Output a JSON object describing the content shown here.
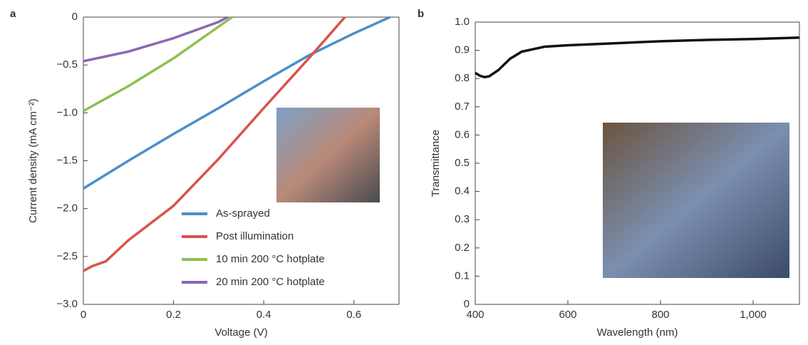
{
  "chart_data": [
    {
      "type": "line",
      "panel_label": "a",
      "x_label": "Voltage (V)",
      "y_label": "Current density (mA cm⁻²)",
      "xlim": [
        0,
        0.7
      ],
      "xticks": [
        0,
        0.2,
        0.4,
        0.6
      ],
      "ylim": [
        -3.0,
        0
      ],
      "yticks": [
        {
          "value": -3.0,
          "label": "−3.0"
        },
        {
          "value": -2.5,
          "label": "−2.5"
        },
        {
          "value": -2.0,
          "label": "−2.0"
        },
        {
          "value": -1.5,
          "label": "−1.5"
        },
        {
          "value": -1.0,
          "label": "−1.0"
        },
        {
          "value": -0.5,
          "label": "−0.5"
        },
        0
      ],
      "legend": "lower-right",
      "series": [
        {
          "name": "As-sprayed",
          "color": "#4a8fcb",
          "x": [
            0,
            0.1,
            0.2,
            0.3,
            0.4,
            0.5,
            0.6,
            0.68
          ],
          "values": [
            -1.79,
            -1.5,
            -1.22,
            -0.95,
            -0.67,
            -0.4,
            -0.17,
            0
          ]
        },
        {
          "name": "Post illumination",
          "color": "#d9534a",
          "x": [
            0,
            0.02,
            0.05,
            0.1,
            0.2,
            0.3,
            0.4,
            0.5,
            0.58
          ],
          "values": [
            -2.65,
            -2.6,
            -2.55,
            -2.33,
            -1.97,
            -1.48,
            -0.95,
            -0.43,
            0
          ]
        },
        {
          "name": "10 min 200 °C hotplate",
          "color": "#8cc152",
          "x": [
            0,
            0.1,
            0.2,
            0.33
          ],
          "values": [
            -0.98,
            -0.72,
            -0.43,
            0
          ]
        },
        {
          "name": "20 min 200 °C hotplate",
          "color": "#8a68b6",
          "x": [
            0,
            0.1,
            0.2,
            0.3,
            0.32
          ],
          "values": [
            -0.46,
            -0.36,
            -0.22,
            -0.05,
            0
          ]
        }
      ]
    },
    {
      "type": "line",
      "panel_label": "b",
      "x_label": "Wavelength (nm)",
      "y_label": "Transmittance",
      "xlim": [
        400,
        1100
      ],
      "xticks": [
        400,
        600,
        800,
        {
          "value": 1000,
          "label": "1,000"
        }
      ],
      "ylim": [
        0,
        1.0
      ],
      "yticks": [
        0,
        0.1,
        0.2,
        0.3,
        0.4,
        0.5,
        0.6,
        0.7,
        0.8,
        0.9,
        {
          "value": 1.0,
          "label": "1.0"
        }
      ],
      "series": [
        {
          "color": "#111111",
          "x": [
            400,
            410,
            420,
            430,
            450,
            475,
            500,
            550,
            600,
            700,
            800,
            900,
            1000,
            1100
          ],
          "values": [
            0.82,
            0.81,
            0.805,
            0.808,
            0.83,
            0.87,
            0.895,
            0.913,
            0.918,
            0.925,
            0.932,
            0.937,
            0.94,
            0.945
          ]
        }
      ]
    }
  ]
}
